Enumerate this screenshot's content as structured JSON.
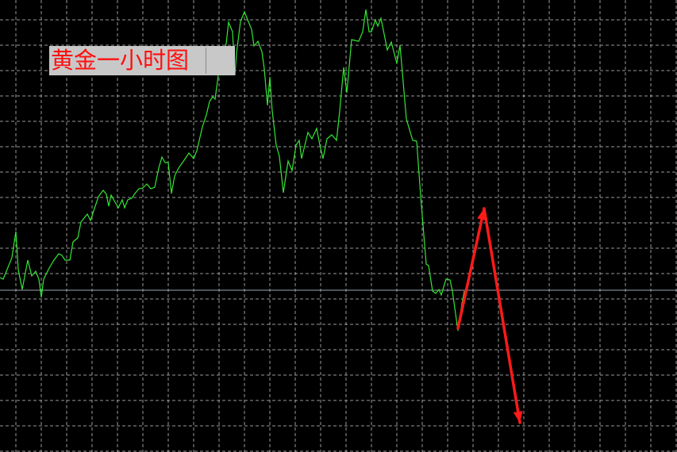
{
  "chart_data": {
    "type": "line",
    "title": "黄金一小时图",
    "xlabel": "",
    "ylabel": "",
    "grid": true,
    "colors": {
      "background": "#000000",
      "grid": "#b4b4b4",
      "line": "#33e633",
      "arrows": "#ff1a1a",
      "label_bg": "#c8c8c8",
      "label_text": "#ff1010",
      "current_price_line": "#9aa4b4"
    },
    "ylim": [
      0,
      570
    ],
    "current_price_level": 204,
    "series": [
      {
        "points": [
          [
            0,
            220
          ],
          [
            4,
            218
          ],
          [
            15,
            245
          ],
          [
            20,
            278
          ],
          [
            23,
            230
          ],
          [
            28,
            205
          ],
          [
            35,
            242
          ],
          [
            40,
            222
          ],
          [
            45,
            228
          ],
          [
            49,
            218
          ],
          [
            52,
            195
          ],
          [
            55,
            218
          ],
          [
            62,
            232
          ],
          [
            68,
            242
          ],
          [
            74,
            250
          ],
          [
            78,
            248
          ],
          [
            82,
            242
          ],
          [
            88,
            242
          ],
          [
            92,
            265
          ],
          [
            98,
            270
          ],
          [
            102,
            290
          ],
          [
            106,
            295
          ],
          [
            110,
            300
          ],
          [
            114,
            292
          ],
          [
            118,
            304
          ],
          [
            124,
            322
          ],
          [
            130,
            330
          ],
          [
            134,
            325
          ],
          [
            137,
            310
          ],
          [
            140,
            324
          ],
          [
            145,
            315
          ],
          [
            149,
            308
          ],
          [
            154,
            318
          ],
          [
            157,
            308
          ],
          [
            161,
            318
          ],
          [
            166,
            320
          ],
          [
            170,
            326
          ],
          [
            175,
            332
          ],
          [
            180,
            333
          ],
          [
            185,
            338
          ],
          [
            190,
            332
          ],
          [
            195,
            334
          ],
          [
            200,
            358
          ],
          [
            204,
            372
          ],
          [
            208,
            365
          ],
          [
            212,
            365
          ],
          [
            216,
            326
          ],
          [
            220,
            348
          ],
          [
            225,
            358
          ],
          [
            232,
            368
          ],
          [
            238,
            377
          ],
          [
            244,
            370
          ],
          [
            248,
            380
          ],
          [
            255,
            410
          ],
          [
            260,
            425
          ],
          [
            264,
            442
          ],
          [
            268,
            448
          ],
          [
            271,
            445
          ],
          [
            275,
            475
          ],
          [
            280,
            495
          ],
          [
            285,
            515
          ],
          [
            288,
            542
          ],
          [
            293,
            530
          ],
          [
            296,
            475
          ],
          [
            298,
            503
          ],
          [
            303,
            543
          ],
          [
            308,
            555
          ],
          [
            317,
            533
          ],
          [
            320,
            512
          ],
          [
            325,
            518
          ],
          [
            330,
            505
          ],
          [
            333,
            483
          ],
          [
            337,
            437
          ],
          [
            340,
            473
          ],
          [
            343,
            430
          ],
          [
            348,
            387
          ],
          [
            352,
            373
          ],
          [
            357,
            327
          ],
          [
            363,
            367
          ],
          [
            368,
            355
          ],
          [
            373,
            387
          ],
          [
            377,
            393
          ],
          [
            380,
            370
          ],
          [
            388,
            403
          ],
          [
            393,
            395
          ],
          [
            399,
            408
          ],
          [
            403,
            387
          ],
          [
            407,
            370
          ],
          [
            412,
            395
          ],
          [
            418,
            400
          ],
          [
            424,
            393
          ],
          [
            428,
            430
          ],
          [
            433,
            485
          ],
          [
            437,
            453
          ],
          [
            443,
            520
          ],
          [
            452,
            518
          ],
          [
            457,
            530
          ],
          [
            461,
            558
          ],
          [
            465,
            530
          ],
          [
            468,
            530
          ],
          [
            473,
            545
          ],
          [
            476,
            537
          ],
          [
            480,
            547
          ],
          [
            488,
            507
          ],
          [
            493,
            517
          ],
          [
            500,
            490
          ],
          [
            504,
            513
          ],
          [
            512,
            420
          ],
          [
            520,
            393
          ],
          [
            525,
            392
          ],
          [
            530,
            323
          ],
          [
            537,
            237
          ],
          [
            540,
            235
          ],
          [
            545,
            203
          ],
          [
            549,
            200
          ],
          [
            553,
            205
          ],
          [
            556,
            198
          ],
          [
            562,
            218
          ],
          [
            567,
            217
          ],
          [
            570,
            203
          ],
          [
            577,
            153
          ],
          [
            582,
            187
          ],
          [
            585,
            203
          ]
        ]
      }
    ],
    "annotations": [
      {
        "type": "arrow",
        "direction": "up",
        "from": [
          577,
          156
        ],
        "to": [
          610,
          307
        ]
      },
      {
        "type": "arrow",
        "direction": "down",
        "from": [
          610,
          307
        ],
        "to": [
          655,
          37
        ]
      }
    ]
  }
}
